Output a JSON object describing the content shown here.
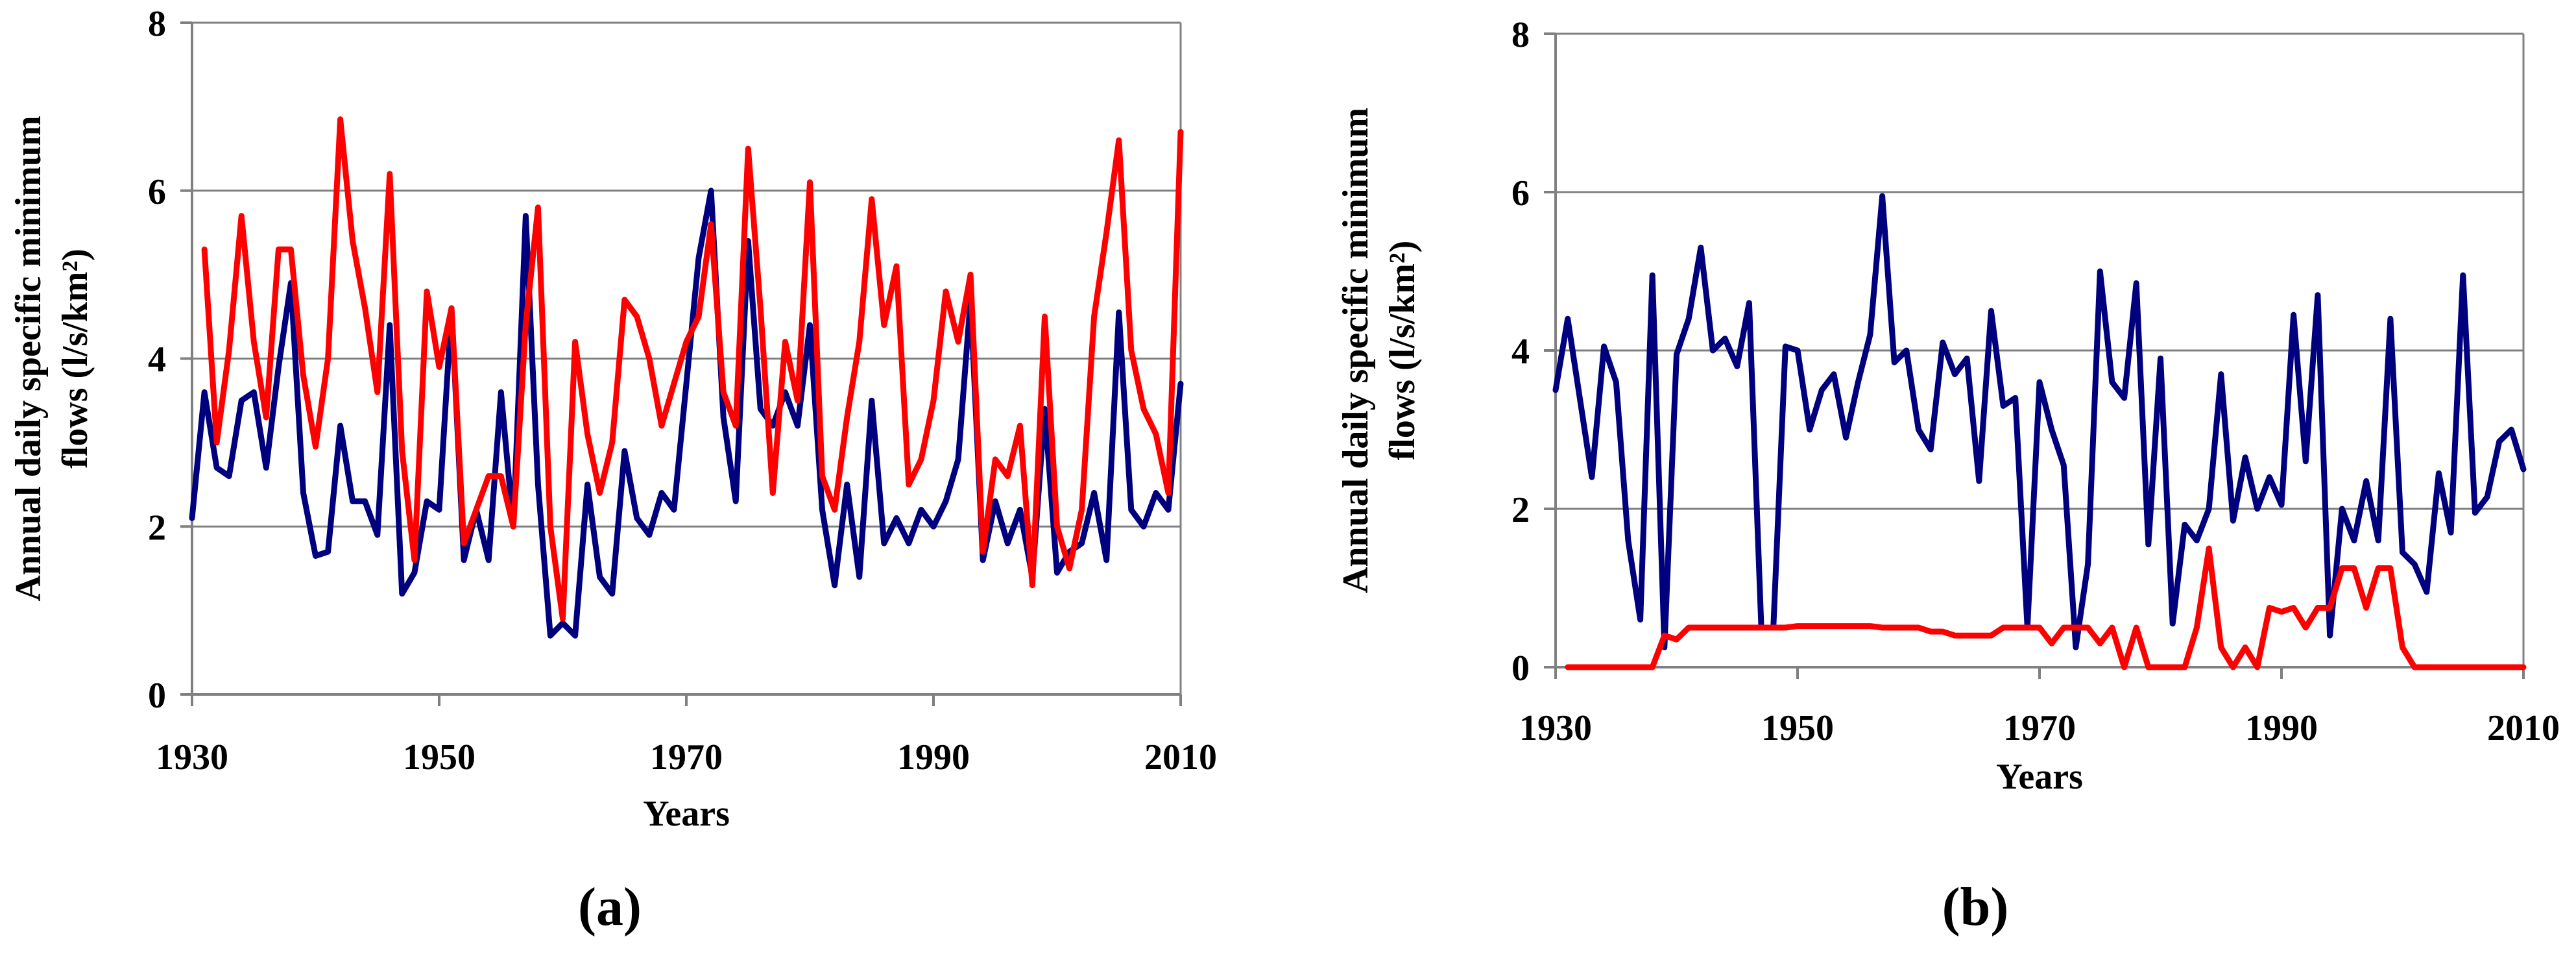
{
  "colors": {
    "series_blue": "#00007f",
    "series_red": "#ff0000",
    "grid": "#808080",
    "axis": "#808080"
  },
  "chart_data": [
    {
      "type": "line",
      "panel_label": "(a)",
      "panel_letter": "a",
      "xlabel": "Years",
      "ylabel_line1": "Annual daily specific minimum",
      "ylabel_line2": "flows (l/s/km²)",
      "xlim": [
        1930,
        2010
      ],
      "ylim": [
        0,
        8
      ],
      "xticks": [
        1930,
        1950,
        1970,
        1990,
        2010
      ],
      "yticks": [
        0,
        2,
        4,
        6,
        8
      ],
      "series": [
        {
          "name": "blue",
          "color": "#00007f",
          "x": [
            1930,
            1931,
            1932,
            1933,
            1934,
            1935,
            1936,
            1937,
            1938,
            1939,
            1940,
            1941,
            1942,
            1943,
            1944,
            1945,
            1946,
            1947,
            1948,
            1949,
            1950,
            1951,
            1952,
            1953,
            1954,
            1955,
            1956,
            1957,
            1958,
            1959,
            1960,
            1961,
            1962,
            1963,
            1964,
            1965,
            1966,
            1967,
            1968,
            1969,
            1970,
            1971,
            1972,
            1973,
            1974,
            1975,
            1976,
            1977,
            1978,
            1979,
            1980,
            1981,
            1982,
            1983,
            1984,
            1985,
            1986,
            1987,
            1988,
            1989,
            1990,
            1991,
            1992,
            1993,
            1994,
            1995,
            1996,
            1997,
            1998,
            1999,
            2000,
            2001,
            2002,
            2003,
            2004,
            2005,
            2006,
            2007,
            2008,
            2009,
            2010
          ],
          "values": [
            2.1,
            3.6,
            2.7,
            2.6,
            3.5,
            3.6,
            2.7,
            3.9,
            4.9,
            2.4,
            1.65,
            1.7,
            3.2,
            2.3,
            2.3,
            1.9,
            4.4,
            1.2,
            1.45,
            2.3,
            2.2,
            4.6,
            1.6,
            2.2,
            1.6,
            3.6,
            2.0,
            5.7,
            2.5,
            0.7,
            0.85,
            0.7,
            2.5,
            1.4,
            1.2,
            2.9,
            2.1,
            1.9,
            2.4,
            2.2,
            3.7,
            5.2,
            6.0,
            3.3,
            2.3,
            5.4,
            3.4,
            3.2,
            3.6,
            3.2,
            4.4,
            2.2,
            1.3,
            2.5,
            1.4,
            3.5,
            1.8,
            2.1,
            1.8,
            2.2,
            2.0,
            2.3,
            2.8,
            4.7,
            1.6,
            2.3,
            1.8,
            2.2,
            1.4,
            3.4,
            1.45,
            1.7,
            1.8,
            2.4,
            1.6,
            4.55,
            2.2,
            2.0,
            2.4,
            2.2,
            3.7
          ]
        },
        {
          "name": "red",
          "color": "#ff0000",
          "x": [
            1931,
            1932,
            1933,
            1934,
            1935,
            1936,
            1937,
            1938,
            1939,
            1940,
            1941,
            1942,
            1943,
            1944,
            1945,
            1946,
            1947,
            1948,
            1949,
            1950,
            1951,
            1952,
            1953,
            1954,
            1955,
            1956,
            1957,
            1958,
            1959,
            1960,
            1961,
            1962,
            1963,
            1964,
            1965,
            1966,
            1967,
            1968,
            1969,
            1970,
            1971,
            1972,
            1973,
            1974,
            1975,
            1976,
            1977,
            1978,
            1979,
            1980,
            1981,
            1982,
            1983,
            1984,
            1985,
            1986,
            1987,
            1988,
            1989,
            1990,
            1991,
            1992,
            1993,
            1994,
            1995,
            1996,
            1997,
            1998,
            1999,
            2000,
            2001,
            2002,
            2003,
            2004,
            2005,
            2006,
            2007,
            2008,
            2009,
            2010
          ],
          "values": [
            5.3,
            3.0,
            4.1,
            5.7,
            4.2,
            3.3,
            5.3,
            5.3,
            3.8,
            2.95,
            4.0,
            6.85,
            5.4,
            4.6,
            3.6,
            6.2,
            2.9,
            1.6,
            4.8,
            3.9,
            4.6,
            1.8,
            2.2,
            2.6,
            2.6,
            2.0,
            4.4,
            5.8,
            2.0,
            0.9,
            4.2,
            3.1,
            2.4,
            3.0,
            4.7,
            4.5,
            4.0,
            3.2,
            3.7,
            4.2,
            4.5,
            5.6,
            3.6,
            3.2,
            6.5,
            4.6,
            2.4,
            4.2,
            3.5,
            6.1,
            2.6,
            2.2,
            3.3,
            4.2,
            5.9,
            4.4,
            5.1,
            2.5,
            2.8,
            3.5,
            4.8,
            4.2,
            5.0,
            1.7,
            2.8,
            2.6,
            3.2,
            1.3,
            4.5,
            2.0,
            1.5,
            2.2,
            4.5,
            5.5,
            6.6,
            4.1,
            3.4,
            3.1,
            2.4,
            6.7
          ]
        }
      ]
    },
    {
      "type": "line",
      "panel_label": "(b)",
      "panel_letter": "b",
      "xlabel": "Years",
      "ylabel_line1": "Annual daily specific minimum",
      "ylabel_line2": "flows (l/s/km²)",
      "xlim": [
        1930,
        2010
      ],
      "ylim": [
        0,
        8
      ],
      "xticks": [
        1930,
        1950,
        1970,
        1990,
        2010
      ],
      "yticks": [
        0,
        2,
        4,
        6,
        8
      ],
      "series": [
        {
          "name": "blue",
          "color": "#00007f",
          "x": [
            1930,
            1931,
            1932,
            1933,
            1934,
            1935,
            1936,
            1937,
            1938,
            1939,
            1940,
            1941,
            1942,
            1943,
            1944,
            1945,
            1946,
            1947,
            1948,
            1949,
            1950,
            1951,
            1952,
            1953,
            1954,
            1955,
            1956,
            1957,
            1958,
            1959,
            1960,
            1961,
            1962,
            1963,
            1964,
            1965,
            1966,
            1967,
            1968,
            1969,
            1970,
            1971,
            1972,
            1973,
            1974,
            1975,
            1976,
            1977,
            1978,
            1979,
            1980,
            1981,
            1982,
            1983,
            1984,
            1985,
            1986,
            1987,
            1988,
            1989,
            1990,
            1991,
            1992,
            1993,
            1994,
            1995,
            1996,
            1997,
            1998,
            1999,
            2000,
            2001,
            2002,
            2003,
            2004,
            2005,
            2006,
            2007,
            2008,
            2009,
            2010
          ],
          "values": [
            3.5,
            4.4,
            3.4,
            2.4,
            4.05,
            3.6,
            1.6,
            0.6,
            4.95,
            0.25,
            3.95,
            4.4,
            5.3,
            4.0,
            4.15,
            3.8,
            4.6,
            0.5,
            0.5,
            4.05,
            4.0,
            3.0,
            3.5,
            3.7,
            2.9,
            3.6,
            4.2,
            5.95,
            3.85,
            4.0,
            3.0,
            2.75,
            4.1,
            3.7,
            3.9,
            2.35,
            4.5,
            3.3,
            3.4,
            0.5,
            3.6,
            3.0,
            2.55,
            0.25,
            1.3,
            5.0,
            3.6,
            3.4,
            4.85,
            1.55,
            3.9,
            0.55,
            1.8,
            1.6,
            2.0,
            3.7,
            1.85,
            2.65,
            2.0,
            2.4,
            2.05,
            4.45,
            2.6,
            4.7,
            0.4,
            2.0,
            1.6,
            2.35,
            1.6,
            4.4,
            1.45,
            1.3,
            0.95,
            2.45,
            1.7,
            4.95,
            1.95,
            2.15,
            2.85,
            3.0,
            2.5
          ]
        },
        {
          "name": "red",
          "color": "#ff0000",
          "x": [
            1931,
            1932,
            1933,
            1934,
            1935,
            1936,
            1937,
            1938,
            1939,
            1940,
            1941,
            1942,
            1943,
            1944,
            1945,
            1946,
            1947,
            1948,
            1949,
            1950,
            1951,
            1952,
            1953,
            1954,
            1955,
            1956,
            1957,
            1958,
            1959,
            1960,
            1961,
            1962,
            1963,
            1964,
            1965,
            1966,
            1967,
            1968,
            1969,
            1970,
            1971,
            1972,
            1973,
            1974,
            1975,
            1976,
            1977,
            1978,
            1979,
            1980,
            1981,
            1982,
            1983,
            1984,
            1985,
            1986,
            1987,
            1988,
            1989,
            1990,
            1991,
            1992,
            1993,
            1994,
            1995,
            1996,
            1997,
            1998,
            1999,
            2000,
            2001,
            2002,
            2003,
            2004,
            2005,
            2006,
            2007,
            2008,
            2009,
            2010
          ],
          "values": [
            0,
            0,
            0,
            0,
            0,
            0,
            0,
            0,
            0.4,
            0.35,
            0.5,
            0.5,
            0.5,
            0.5,
            0.5,
            0.5,
            0.5,
            0.5,
            0.5,
            0.52,
            0.52,
            0.52,
            0.52,
            0.52,
            0.52,
            0.52,
            0.5,
            0.5,
            0.5,
            0.5,
            0.45,
            0.45,
            0.4,
            0.4,
            0.4,
            0.4,
            0.5,
            0.5,
            0.5,
            0.5,
            0.3,
            0.5,
            0.5,
            0.5,
            0.3,
            0.5,
            0.0,
            0.5,
            0.0,
            0.0,
            0.0,
            0.0,
            0.5,
            1.5,
            0.25,
            0.0,
            0.25,
            0.0,
            0.75,
            0.7,
            0.75,
            0.5,
            0.75,
            0.75,
            1.25,
            1.25,
            0.75,
            1.25,
            1.25,
            0.25,
            0,
            0,
            0,
            0,
            0,
            0,
            0,
            0,
            0,
            0
          ]
        }
      ]
    }
  ]
}
